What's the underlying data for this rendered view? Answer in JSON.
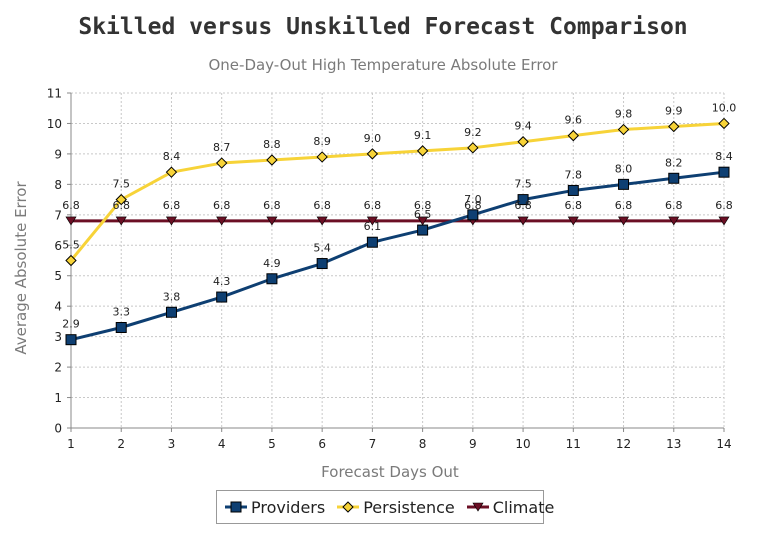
{
  "chart_data": {
    "type": "line",
    "title": "Skilled versus Unskilled Forecast Comparison",
    "subtitle": "One-Day-Out High Temperature Absolute Error",
    "xlabel": "Forecast Days Out",
    "ylabel": "Average Absolute Error",
    "x": [
      1,
      2,
      3,
      4,
      5,
      6,
      7,
      8,
      9,
      10,
      11,
      12,
      13,
      14
    ],
    "xlim": [
      1,
      14
    ],
    "ylim": [
      0,
      11
    ],
    "yticks": [
      0,
      1,
      2,
      3,
      4,
      5,
      6,
      7,
      8,
      9,
      10,
      11
    ],
    "grid": true,
    "legend": "bottom",
    "series": [
      {
        "name": "Providers",
        "color": "#0e3f72",
        "marker": "square",
        "values": [
          2.9,
          3.3,
          3.8,
          4.3,
          4.9,
          5.4,
          6.1,
          6.5,
          7.0,
          7.5,
          7.8,
          8.0,
          8.2,
          8.4
        ],
        "labels": [
          "2.9",
          "3.3",
          "3.8",
          "4.3",
          "4.9",
          "5.4",
          "6.1",
          "6.5",
          "7.0",
          "7.5",
          "7.8",
          "8.0",
          "8.2",
          "8.4"
        ]
      },
      {
        "name": "Persistence",
        "color": "#f7d338",
        "marker": "diamond",
        "values": [
          5.5,
          7.5,
          8.4,
          8.7,
          8.8,
          8.9,
          9.0,
          9.1,
          9.2,
          9.4,
          9.6,
          9.8,
          9.9,
          10.0
        ],
        "labels": [
          "5.5",
          "7.5",
          "8.4",
          "8.7",
          "8.8",
          "8.9",
          "9.0",
          "9.1",
          "9.2",
          "9.4",
          "9.6",
          "9.8",
          "9.9",
          "10.0"
        ]
      },
      {
        "name": "Climate",
        "color": "#6b0f24",
        "marker": "triangle-down",
        "values": [
          6.8,
          6.8,
          6.8,
          6.8,
          6.8,
          6.8,
          6.8,
          6.8,
          6.8,
          6.8,
          6.8,
          6.8,
          6.8,
          6.8
        ],
        "labels": [
          "6.8",
          "6.8",
          "6.8",
          "6.8",
          "6.8",
          "6.8",
          "6.8",
          "6.8",
          "6.8",
          "6.8",
          "6.8",
          "6.8",
          "6.8",
          "6.8"
        ]
      }
    ]
  }
}
